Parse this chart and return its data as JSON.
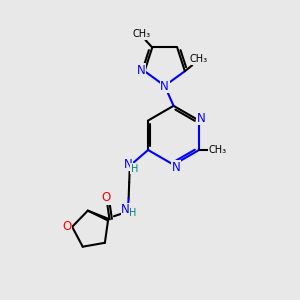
{
  "bg_color": "#e8e8e8",
  "bond_color": "#000000",
  "N_color": "#0000ff",
  "O_color": "#ff0000",
  "H_color": "#008080",
  "line_width": 1.5,
  "figsize": [
    3.0,
    3.0
  ],
  "dpi": 100,
  "xlim": [
    0,
    10
  ],
  "ylim": [
    0,
    10
  ]
}
